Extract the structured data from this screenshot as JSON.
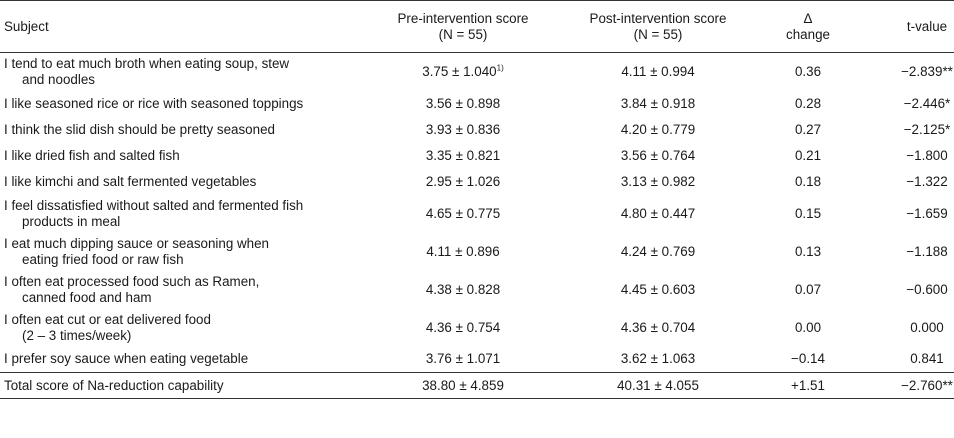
{
  "header": {
    "subject": "Subject",
    "pre_line1": "Pre-intervention score",
    "pre_line2": "(N = 55)",
    "post_line1": "Post-intervention score",
    "post_line2": "(N = 55)",
    "delta_line1": "Δ",
    "delta_line2": "change",
    "t": "t-value"
  },
  "rows": [
    {
      "line1": "I tend to eat much broth when eating soup, stew",
      "line2": "and noodles",
      "pre": "3.75 ± 1.040",
      "pre_note": "1)",
      "post": "4.11 ± 0.994",
      "delta": "0.36",
      "t": "−2.839**"
    },
    {
      "line1": "I like seasoned rice or rice with seasoned toppings",
      "pre": "3.56 ± 0.898",
      "post": "3.84 ± 0.918",
      "delta": "0.28",
      "t": "−2.446*"
    },
    {
      "line1": "I think the slid dish should be pretty seasoned",
      "pre": "3.93 ± 0.836",
      "post": "4.20 ± 0.779",
      "delta": "0.27",
      "t": "−2.125*"
    },
    {
      "line1": "I like dried fish and salted fish",
      "pre": "3.35 ± 0.821",
      "post": "3.56 ± 0.764",
      "delta": "0.21",
      "t": "−1.800"
    },
    {
      "line1": "I like kimchi and salt fermented vegetables",
      "pre": "2.95 ± 1.026",
      "post": "3.13 ± 0.982",
      "delta": "0.18",
      "t": "−1.322"
    },
    {
      "line1": "I feel dissatisfied without salted and fermented fish",
      "line2": "products in meal",
      "pre": "4.65 ± 0.775",
      "post": "4.80 ± 0.447",
      "delta": "0.15",
      "t": "−1.659"
    },
    {
      "line1": "I eat much dipping sauce or seasoning when",
      "line2": "eating fried food or raw fish",
      "pre": "4.11 ± 0.896",
      "post": "4.24 ± 0.769",
      "delta": "0.13",
      "t": "−1.188"
    },
    {
      "line1": "I often eat processed food such as Ramen,",
      "line2": "canned food and ham",
      "pre": "4.38 ± 0.828",
      "post": "4.45 ± 0.603",
      "delta": "0.07",
      "t": "−0.600"
    },
    {
      "line1": "I often eat cut or eat delivered food",
      "line2": "(2 – 3 times/week)",
      "pre": "4.36 ± 0.754",
      "post": "4.36 ± 0.704",
      "delta": "0.00",
      "t": "0.000"
    },
    {
      "line1": "I prefer soy sauce when eating vegetable",
      "pre": "3.76 ± 1.071",
      "post": "3.62 ± 1.063",
      "delta": "−0.14",
      "t": "0.841"
    },
    {
      "line1": "Total score of Na-reduction capability",
      "pre": "38.80 ± 4.859",
      "post": "40.31 ± 4.055",
      "delta": "+1.51",
      "t": "−2.760**"
    }
  ]
}
